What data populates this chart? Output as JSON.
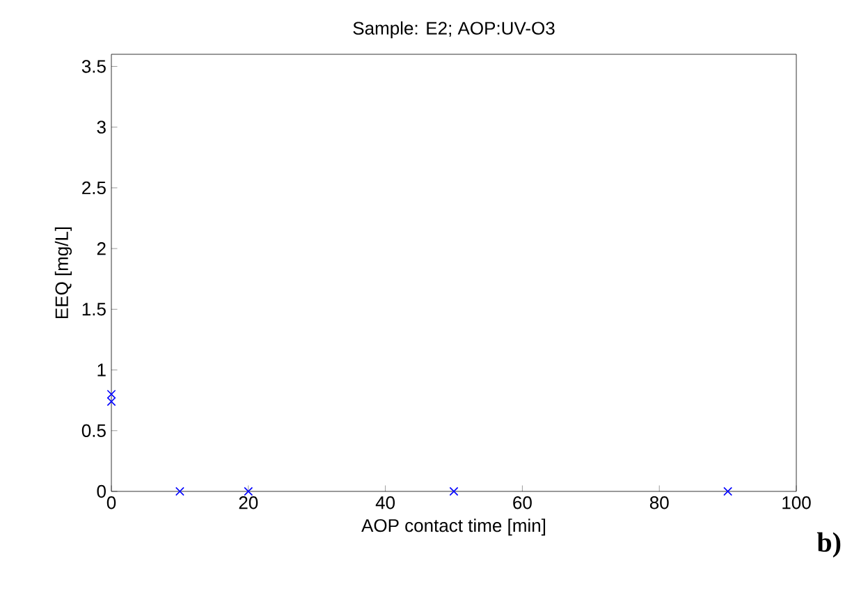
{
  "chart_data": {
    "type": "scatter",
    "title": "Sample: E2; AOP:UV-O3",
    "xlabel": "AOP contact time [min]",
    "ylabel": "EEQ [mg/L]",
    "x": [
      0,
      0,
      10,
      20,
      50,
      90
    ],
    "series": [
      {
        "color": "#0000ff",
        "values": [
          0.8,
          0.74,
          0,
          0,
          0,
          0
        ]
      }
    ],
    "marker": "cross",
    "xlim": [
      0,
      100
    ],
    "xticks": [
      0,
      20,
      40,
      60,
      80,
      100
    ],
    "ylim": [
      0,
      3.6
    ],
    "yticks": [
      0,
      0.5,
      1,
      1.5,
      2,
      2.5,
      3,
      3.5
    ],
    "annotations": [
      "**b)**"
    ]
  }
}
